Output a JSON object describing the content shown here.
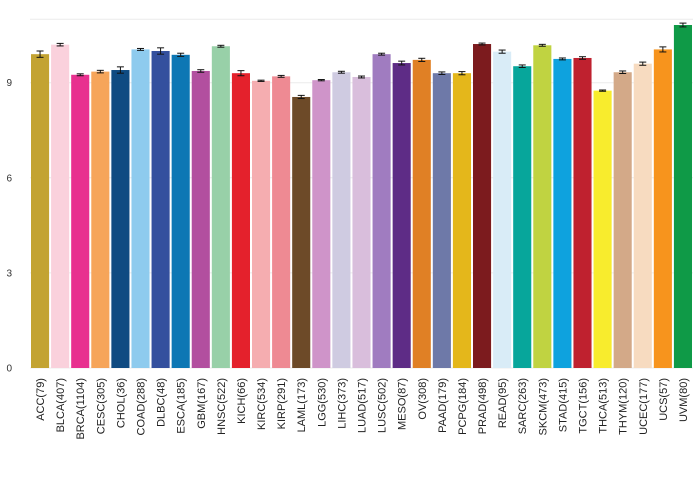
{
  "chart_data": {
    "type": "bar",
    "title": "",
    "xlabel": "",
    "ylabel": "",
    "ylim": [
      0,
      11
    ],
    "yticks": [
      0,
      3,
      6,
      9
    ],
    "grid": true,
    "legend": "none",
    "categories": [
      "ACC(79)",
      "BLCA(407)",
      "BRCA(1104)",
      "CESC(305)",
      "CHOL(36)",
      "COAD(288)",
      "DLBC(48)",
      "ESCA(185)",
      "GBM(167)",
      "HNSC(522)",
      "KICH(66)",
      "KIRC(534)",
      "KIRP(291)",
      "LAML(173)",
      "LGG(530)",
      "LIHC(373)",
      "LUAD(517)",
      "LUSC(502)",
      "MESO(87)",
      "OV(308)",
      "PAAD(179)",
      "PCPG(184)",
      "PRAD(498)",
      "READ(95)",
      "SARC(263)",
      "SKCM(473)",
      "STAD(415)",
      "TGCT(156)",
      "THCA(513)",
      "THYM(120)",
      "UCEC(177)",
      "UCS(57)",
      "UVM(80)"
    ],
    "values": [
      9.9,
      10.2,
      9.25,
      9.35,
      9.4,
      10.05,
      10.0,
      9.88,
      9.37,
      10.15,
      9.3,
      9.06,
      9.2,
      8.55,
      9.08,
      9.33,
      9.18,
      9.9,
      9.62,
      9.72,
      9.3,
      9.3,
      10.22,
      9.98,
      9.52,
      10.18,
      9.75,
      9.78,
      8.75,
      9.33,
      9.6,
      10.05,
      10.82
    ],
    "errors": [
      0.1,
      0.04,
      0.03,
      0.04,
      0.1,
      0.03,
      0.1,
      0.05,
      0.04,
      0.03,
      0.08,
      0.02,
      0.03,
      0.05,
      0.02,
      0.03,
      0.03,
      0.03,
      0.06,
      0.05,
      0.04,
      0.05,
      0.03,
      0.05,
      0.04,
      0.03,
      0.03,
      0.04,
      0.02,
      0.04,
      0.05,
      0.08,
      0.06
    ],
    "colors": [
      "#c3a332",
      "#fad1dc",
      "#e8308f",
      "#f6a55a",
      "#0f4b82",
      "#8ecbee",
      "#34509e",
      "#0d77b4",
      "#b24f9f",
      "#98d0a8",
      "#e4212c",
      "#f5adb0",
      "#ee8a93",
      "#6d4a28",
      "#cf94c9",
      "#cfcbe1",
      "#d9bedc",
      "#a07cc0",
      "#5e2c86",
      "#e08025",
      "#6e79a8",
      "#e4b71b",
      "#7c1b1e",
      "#d9ecf7",
      "#07a69b",
      "#c0d341",
      "#0ea2de",
      "#bf212f",
      "#f8ec2d",
      "#d3a988",
      "#f7dbc0",
      "#f7941d",
      "#0f9a47"
    ]
  }
}
